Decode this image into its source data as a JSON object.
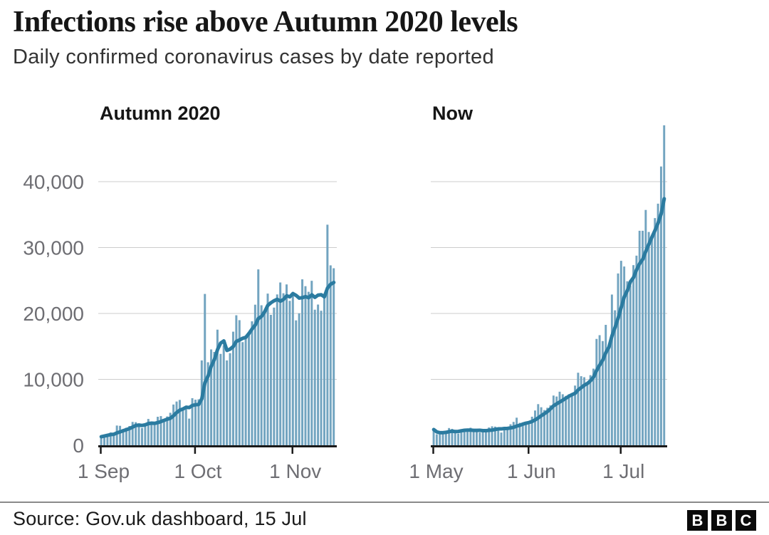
{
  "header": {
    "title": "Infections rise above Autumn 2020 levels",
    "subtitle": "Daily confirmed coronavirus cases by date reported"
  },
  "footer": {
    "source": "Source: Gov.uk dashboard, 15 Jul",
    "logo_letters": [
      "B",
      "B",
      "C"
    ]
  },
  "colors": {
    "bar": "#72a4c0",
    "line": "#2b7ba0",
    "grid": "#cccccc",
    "axis": "#1a1a1a",
    "tick_label": "#6e6e73",
    "panel_title": "#161616"
  },
  "y_axis": {
    "ticks": [
      {
        "value": 0,
        "label": "0"
      },
      {
        "value": 10000,
        "label": "10,000"
      },
      {
        "value": 20000,
        "label": "20,000"
      },
      {
        "value": 30000,
        "label": "30,000"
      },
      {
        "value": 40000,
        "label": "40,000"
      }
    ],
    "plot_max": 49000,
    "grid": "horizontal only",
    "legend": "none"
  },
  "chart_data": [
    {
      "type": "bar",
      "name": "Autumn 2020",
      "overlay_line": "7-day rolling average",
      "x_ticks": [
        {
          "label": "1 Sep",
          "day": 0
        },
        {
          "label": "1 Oct",
          "day": 30
        },
        {
          "label": "1 Nov",
          "day": 61
        }
      ],
      "values": [
        1295,
        1508,
        1735,
        1940,
        1813,
        2988,
        2948,
        2460,
        2659,
        2919,
        3539,
        3497,
        3330,
        2621,
        3105,
        3991,
        3395,
        3295,
        4322,
        4422,
        3899,
        4368,
        4926,
        6178,
        6634,
        6874,
        5693,
        5692,
        4044,
        7143,
        6914,
        6968,
        12872,
        22961,
        12594,
        14542,
        14162,
        17540,
        13864,
        15166,
        12872,
        13972,
        17234,
        19724,
        18980,
        15650,
        16171,
        16982,
        18804,
        21331,
        26688,
        21242,
        20530,
        23012,
        19790,
        20890,
        22885,
        24701,
        23065,
        24405,
        21915,
        23254,
        18950,
        20018,
        25177,
        24141,
        23287,
        24957,
        20572,
        21350,
        20412,
        22950,
        33470,
        27301,
        26860
      ]
    },
    {
      "type": "bar",
      "name": "Now",
      "overlay_line": "7-day rolling average",
      "x_ticks": [
        {
          "label": "1 May",
          "day": 0
        },
        {
          "label": "1 Jun",
          "day": 31
        },
        {
          "label": "1 Jul",
          "day": 61
        }
      ],
      "values": [
        2381,
        1671,
        1649,
        1946,
        2144,
        2613,
        2490,
        2047,
        1770,
        2357,
        2474,
        2284,
        2657,
        2193,
        2027,
        1926,
        1979,
        2412,
        2696,
        2874,
        2829,
        2642,
        1926,
        2439,
        2493,
        3180,
        3542,
        4182,
        3398,
        3240,
        3383,
        3165,
        4330,
        5274,
        6238,
        5765,
        5341,
        5683,
        6048,
        7540,
        7393,
        8125,
        7738,
        7490,
        7742,
        7673,
        9055,
        11007,
        10476,
        10321,
        9284,
        10633,
        11625,
        16135,
        16703,
        15810,
        18270,
        14876,
        22868,
        20479,
        26068,
        27989,
        27125,
        24885,
        24248,
        27334,
        28773,
        32548,
        32551,
        35707,
        32367,
        31772,
        34471,
        36660,
        42302,
        48553
      ]
    }
  ]
}
